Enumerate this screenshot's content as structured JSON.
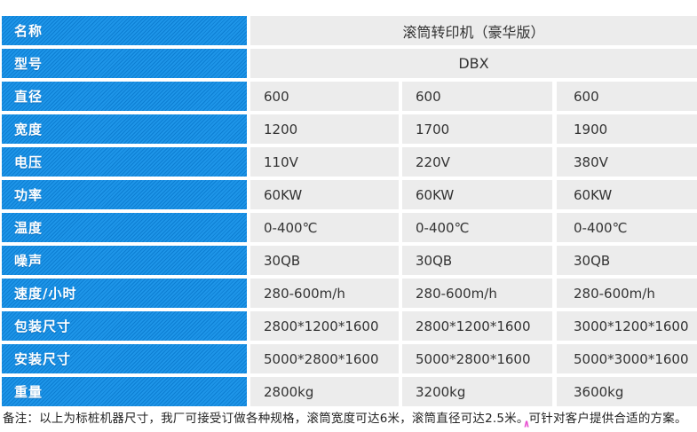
{
  "table": {
    "rows": [
      {
        "label": "名称",
        "span": "滚筒转印机（豪华版）"
      },
      {
        "label": "型号",
        "span": "DBX"
      },
      {
        "label": "直径",
        "values": [
          "600",
          "600",
          "600"
        ]
      },
      {
        "label": "宽度",
        "values": [
          "1200",
          "1700",
          "1900"
        ]
      },
      {
        "label": "电压",
        "values": [
          "110V",
          "220V",
          "380V"
        ]
      },
      {
        "label": "功率",
        "values": [
          "60KW",
          "60KW",
          "60KW"
        ]
      },
      {
        "label": "温度",
        "values": [
          "0-400℃",
          "0-400℃",
          "0-400℃"
        ]
      },
      {
        "label": "噪声",
        "values": [
          "30QB",
          "30QB",
          "30QB"
        ]
      },
      {
        "label": "速度/小时",
        "values": [
          "280-600m/h",
          "280-600m/h",
          "280-600m/h"
        ]
      },
      {
        "label": "包装尺寸",
        "values": [
          "2800*1200*1600",
          "2800*1200*1600",
          "3000*1200*1600"
        ]
      },
      {
        "label": "安装尺寸",
        "values": [
          "5000*2800*1600",
          "5000*2800*1600",
          "5000*3000*1600"
        ]
      },
      {
        "label": "重量",
        "values": [
          "2800kg",
          "3200kg",
          "3600kg"
        ]
      }
    ],
    "note": "备注：以上为标桩机器尺寸，我厂可接受订做各种规格，滚筒宽度可达6米，滚筒直径可达2.5米。可针对客户提供合适的方案。",
    "caret_glyph": "∧"
  },
  "colors": {
    "label_blue": "#1b90e4",
    "label_blue_stripe": "#0d7ed2",
    "cell_gray": "#ececec",
    "value_text": "#333333",
    "caret_pink": "#e84fd0"
  }
}
